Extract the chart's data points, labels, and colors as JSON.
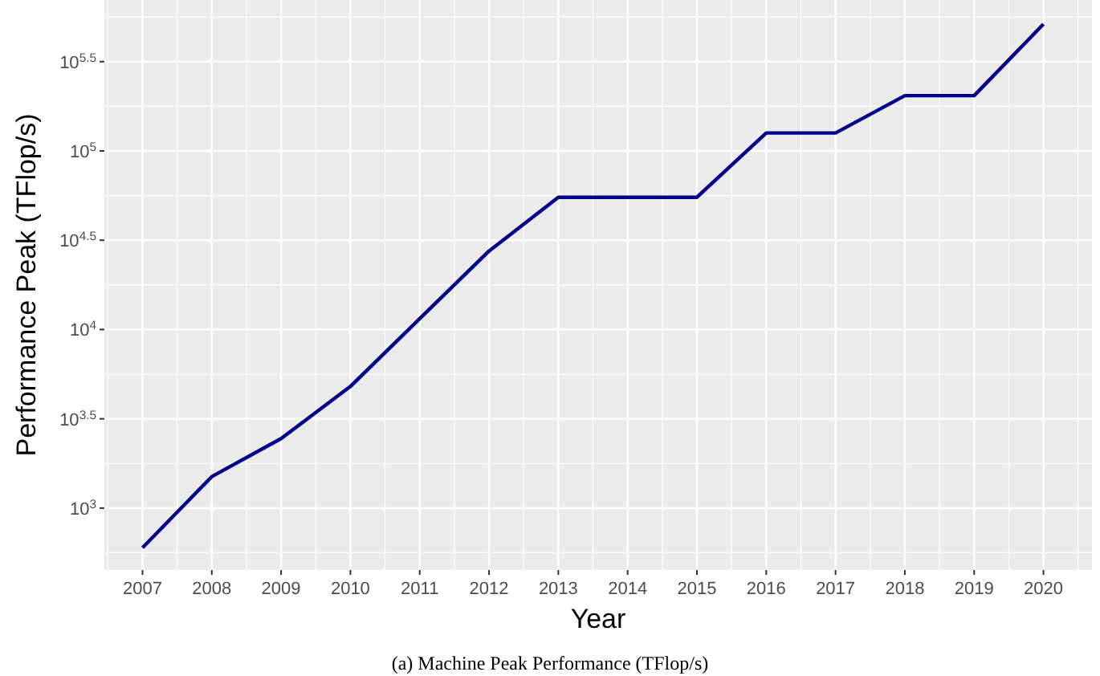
{
  "chart_data": {
    "type": "line",
    "xlabel": "Year",
    "ylabel": "Performance Peak (TFlop/s)",
    "annotations": [
      "(a) Machine Peak Performance (TFlop/s)"
    ],
    "x": [
      2007,
      2008,
      2009,
      2010,
      2011,
      2012,
      2013,
      2014,
      2015,
      2016,
      2017,
      2018,
      2019,
      2020
    ],
    "series": [
      {
        "color": "#00008b",
        "values": [
          600,
          1500,
          2450,
          4800,
          11500,
          27500,
          55000,
          55000,
          55000,
          126000,
          126000,
          204000,
          204000,
          513000
        ]
      }
    ],
    "log": "y",
    "grid": true,
    "line_style": "solid",
    "marker": "none",
    "xlim": [
      2006.45,
      2020.7
    ],
    "xticks": [
      2007,
      2008,
      2009,
      2010,
      2011,
      2012,
      2013,
      2014,
      2015,
      2016,
      2017,
      2018,
      2019,
      2020
    ],
    "ylim": [
      450,
      700000
    ],
    "yticks": [
      {
        "value": 1000,
        "label": "10$^{3}$"
      },
      {
        "value": 3162,
        "label": "10$^{3.5}$"
      },
      {
        "value": 10000,
        "label": "10$^{4}$"
      },
      {
        "value": 31623,
        "label": "10$^{4.5}$"
      },
      {
        "value": 100000,
        "label": "10$^{5}$"
      },
      {
        "value": 316228,
        "label": "10$^{5.5}$"
      }
    ]
  }
}
